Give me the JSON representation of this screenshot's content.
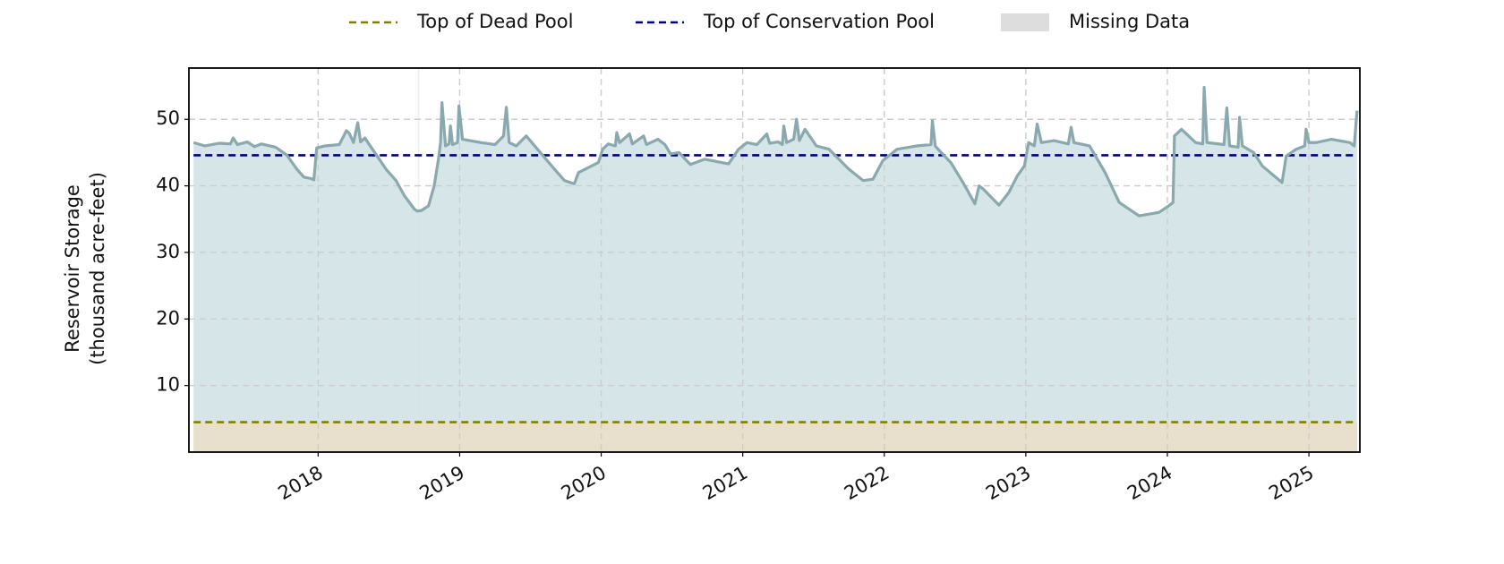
{
  "chart_data": {
    "type": "line",
    "ylabel": [
      "Reservoir Storage",
      "(thousand acre-feet)"
    ],
    "xlim": [
      2017.087,
      2025.36
    ],
    "ylim": [
      0,
      57.7
    ],
    "xticks": [
      2018,
      2019,
      2020,
      2021,
      2022,
      2023,
      2024,
      2025
    ],
    "yticks": [
      10,
      20,
      30,
      40,
      50
    ],
    "grid": true,
    "legend": "top",
    "series": [
      {
        "color": "#8aa9ae",
        "fill_color": "#d6e6e8",
        "x": [
          2017.12,
          2017.2,
          2017.3,
          2017.38,
          2017.4,
          2017.43,
          2017.5,
          2017.55,
          2017.6,
          2017.7,
          2017.78,
          2017.85,
          2017.9,
          2017.95,
          2017.97,
          2017.99,
          2018.05,
          2018.15,
          2018.2,
          2018.22,
          2018.25,
          2018.28,
          2018.3,
          2018.33,
          2018.4,
          2018.48,
          2018.55,
          2018.61,
          2018.68,
          2018.7,
          2018.73,
          2018.78,
          2018.82,
          2018.85,
          2018.865,
          2018.875,
          2018.9,
          2018.925,
          2018.935,
          2018.95,
          2018.985,
          2018.995,
          2019.02,
          2019.15,
          2019.25,
          2019.31,
          2019.33,
          2019.35,
          2019.4,
          2019.47,
          2019.57,
          2019.67,
          2019.74,
          2019.81,
          2019.84,
          2019.98,
          2020.01,
          2020.05,
          2020.1,
          2020.11,
          2020.13,
          2020.2,
          2020.22,
          2020.3,
          2020.32,
          2020.4,
          2020.45,
          2020.49,
          2020.55,
          2020.63,
          2020.73,
          2020.9,
          2020.97,
          2021.03,
          2021.1,
          2021.17,
          2021.19,
          2021.25,
          2021.28,
          2021.29,
          2021.31,
          2021.36,
          2021.38,
          2021.4,
          2021.44,
          2021.52,
          2021.61,
          2021.75,
          2021.85,
          2021.92,
          2021.99,
          2022.09,
          2022.23,
          2022.33,
          2022.34,
          2022.36,
          2022.38,
          2022.47,
          2022.57,
          2022.64,
          2022.67,
          2022.7,
          2022.81,
          2022.88,
          2022.94,
          2022.99,
          2023.02,
          2023.06,
          2023.08,
          2023.11,
          2023.2,
          2023.3,
          2023.32,
          2023.34,
          2023.45,
          2023.56,
          2023.66,
          2023.8,
          2023.94,
          2024.01,
          2024.04,
          2024.05,
          2024.1,
          2024.2,
          2024.25,
          2024.26,
          2024.28,
          2024.4,
          2024.42,
          2024.44,
          2024.5,
          2024.51,
          2024.53,
          2024.61,
          2024.67,
          2024.81,
          2024.84,
          2024.91,
          2024.97,
          2024.98,
          2025.0,
          2025.05,
          2025.16,
          2025.29,
          2025.32,
          2025.34
        ],
        "values": [
          46.5,
          46.0,
          46.4,
          46.3,
          47.2,
          46.2,
          46.6,
          45.9,
          46.3,
          45.8,
          44.6,
          42.5,
          41.3,
          41.1,
          40.9,
          45.7,
          46.0,
          46.2,
          48.3,
          47.9,
          46.5,
          49.5,
          46.6,
          47.2,
          45.0,
          42.5,
          40.8,
          38.5,
          36.5,
          36.2,
          36.3,
          37.0,
          40.0,
          44.0,
          46.5,
          52.5,
          46.0,
          46.3,
          49.0,
          46.2,
          46.5,
          52.0,
          47.0,
          46.5,
          46.2,
          47.5,
          51.8,
          46.5,
          46.0,
          47.5,
          45.0,
          42.5,
          40.8,
          40.3,
          42.0,
          43.5,
          45.5,
          46.3,
          46.0,
          48.0,
          46.5,
          47.8,
          46.3,
          47.5,
          46.2,
          47.0,
          46.2,
          44.8,
          45.0,
          43.2,
          44.0,
          43.3,
          45.5,
          46.5,
          46.2,
          47.8,
          46.4,
          46.6,
          46.2,
          49.0,
          46.5,
          47.0,
          50.0,
          46.8,
          48.5,
          46.0,
          45.5,
          42.5,
          40.8,
          41.0,
          43.8,
          45.5,
          46.0,
          46.2,
          49.8,
          46.0,
          45.5,
          43.5,
          40.0,
          37.3,
          40.0,
          39.5,
          37.1,
          39.0,
          41.5,
          43.0,
          46.5,
          46.0,
          49.3,
          46.5,
          46.8,
          46.3,
          48.8,
          46.5,
          46.0,
          42.0,
          37.5,
          35.5,
          36.0,
          37.0,
          37.5,
          47.5,
          48.5,
          46.5,
          46.3,
          54.8,
          46.5,
          46.2,
          51.7,
          46.0,
          45.8,
          50.3,
          46.0,
          45.0,
          43.0,
          40.5,
          44.5,
          45.5,
          46.0,
          48.5,
          46.5,
          46.5,
          47.0,
          46.5,
          46.0,
          51.3
        ]
      }
    ],
    "reference_lines": [
      {
        "name": "Top of Dead Pool",
        "value": 4.5,
        "color": "#808000",
        "fill_color": "#e8e0cc"
      },
      {
        "name": "Top of Conservation Pool",
        "value": 44.6,
        "color": "#00007f"
      }
    ],
    "missing": {
      "name": "Missing Data",
      "color": "#dddddd",
      "spans": [
        [
          2018.705,
          2018.715
        ]
      ]
    }
  }
}
